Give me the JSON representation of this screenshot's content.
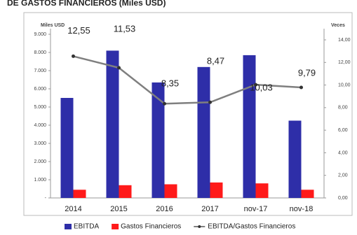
{
  "chart_data": {
    "type": "bar",
    "title": "DE GASTOS FINANCIEROS (Miles USD)",
    "y_label": "Miles USD",
    "y2_label": "Veces",
    "categories": [
      "2014",
      "2015",
      "2016",
      "2017",
      "nov-17",
      "nov-18"
    ],
    "series": [
      {
        "name": "EBITDA",
        "type": "bar",
        "color": "#2e2ea8",
        "values": [
          5500,
          8100,
          6350,
          7200,
          7850,
          4250
        ]
      },
      {
        "name": "Gastos Financieros",
        "type": "bar",
        "color": "#ff1a1a",
        "values": [
          450,
          700,
          750,
          850,
          800,
          450
        ]
      },
      {
        "name": "EBITDA/Gastos Financieros",
        "type": "line",
        "axis": "y2",
        "color": "#7f7f7f",
        "values": [
          12.55,
          11.53,
          8.35,
          8.47,
          10.03,
          9.79
        ],
        "value_labels": [
          "12,55",
          "11,53",
          "8,35",
          "8,47",
          "10,03",
          "9,79"
        ]
      }
    ],
    "ylim": [
      0,
      9000
    ],
    "yticks": [
      {
        "value": 0,
        "label": "-"
      },
      {
        "value": 1000,
        "label": "1.000"
      },
      {
        "value": 2000,
        "label": "2.000"
      },
      {
        "value": 3000,
        "label": "3.000"
      },
      {
        "value": 4000,
        "label": "4.000"
      },
      {
        "value": 5000,
        "label": "5.000"
      },
      {
        "value": 6000,
        "label": "6.000"
      },
      {
        "value": 7000,
        "label": "7.000"
      },
      {
        "value": 8000,
        "label": "8.000"
      },
      {
        "value": 9000,
        "label": "9.000"
      }
    ],
    "y2lim": [
      0,
      14
    ],
    "y2ticks": [
      {
        "value": 0,
        "label": "0,00"
      },
      {
        "value": 2,
        "label": "2,00"
      },
      {
        "value": 4,
        "label": "4,00"
      },
      {
        "value": 6,
        "label": "6,00"
      },
      {
        "value": 8,
        "label": "8,00"
      },
      {
        "value": 10,
        "label": "10,00"
      },
      {
        "value": 12,
        "label": "12,00"
      },
      {
        "value": 14,
        "label": "14,00"
      }
    ],
    "legend": "bottom"
  }
}
